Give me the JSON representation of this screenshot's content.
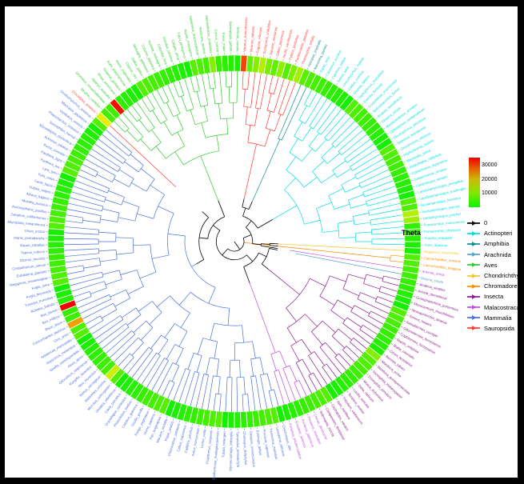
{
  "chart_data": {
    "type": "circular-phylogenetic-tree-with-heatmap-ring",
    "theta_label": "Theta",
    "colors": {
      "background": "#000000",
      "plot_background": "#ffffff",
      "ring_low": "#00f000",
      "ring_high": "#ff0000"
    },
    "scale": {
      "ticks": [
        "30000",
        "20000",
        "10000"
      ],
      "max": 35000
    },
    "legend": {
      "zero_label": "0",
      "zero_color": "#000000"
    },
    "classes": [
      {
        "label": "Actinopteri",
        "color": "#00dede"
      },
      {
        "label": "Amphibia",
        "color": "#0d8f8f"
      },
      {
        "label": "Arachnida",
        "color": "#56a0d3"
      },
      {
        "label": "Aves",
        "color": "#2fcb2f"
      },
      {
        "label": "Chondrichthyes",
        "color": "#f5c531"
      },
      {
        "label": "Chromadorea",
        "color": "#ff8c00"
      },
      {
        "label": "Insecta",
        "color": "#8b1a8b"
      },
      {
        "label": "Malacostraca",
        "color": "#be4be3"
      },
      {
        "label": "Mammalia",
        "color": "#4a6fdc"
      },
      {
        "label": "Sauropsida",
        "color": "#ff3b30"
      }
    ],
    "leaves": [
      [
        "Varanus_komodoensis",
        "Sauropsida",
        28000
      ],
      [
        "Varanus_salvator",
        "Sauropsida",
        7000
      ],
      [
        "Pogona_vitticeps",
        "Sauropsida",
        9000
      ],
      [
        "Sceloporus_undulatus",
        "Sauropsida",
        12000
      ],
      [
        "Salvator_merianae",
        "Sauropsida",
        8000
      ],
      [
        "Gekko_japonicus",
        "Sauropsida",
        6500
      ],
      [
        "Anolis_carolinensis",
        "Sauropsida",
        10000
      ],
      [
        "Python_bivittatus",
        "Sauropsida",
        5500
      ],
      [
        "Pantherophis_guttatus",
        "Sauropsida",
        8500
      ],
      [
        "Thamnophis_sirtalis",
        "Sauropsida",
        11000
      ],
      [
        "Xenopus_tropicalis",
        "Amphibia"
      ],
      [
        "Nanorana_parkeri",
        "Amphibia"
      ],
      [
        "Danio_rerio",
        "Actinopteri"
      ],
      [
        "Carassius_auratus",
        "Actinopteri"
      ],
      [
        "Cyprinus_carpio",
        "Actinopteri"
      ],
      [
        "Salmo_salar",
        "Actinopteri"
      ],
      [
        "Oncorhynchus_mykiss",
        "Actinopteri"
      ],
      [
        "Gadus_morhua",
        "Actinopteri"
      ],
      [
        "Oryzias_latipes",
        "Actinopteri"
      ],
      [
        "Xiphophorus_maculatus",
        "Actinopteri"
      ],
      [
        "Poecilia_formosa",
        "Actinopteri"
      ],
      [
        "Kryptolebias_marmoratus",
        "Actinopteri"
      ],
      [
        "Nothobranchius_furzeri",
        "Actinopteri"
      ],
      [
        "Anabas_testudineus",
        "Actinopteri"
      ],
      [
        "Channa_striata",
        "Actinopteri"
      ],
      [
        "Mastacembelus_armatus",
        "Actinopteri"
      ],
      [
        "Ophisternon_aenigmaticum",
        "Actinopteri"
      ],
      [
        "Electrophorus_electricus",
        "Actinopteri"
      ],
      [
        "Salminus_brasiliensis",
        "Actinopteri"
      ],
      [
        "Oreochromis_niloticus",
        "Actinopteri"
      ],
      [
        "Haplochromis_burtoni",
        "Actinopteri"
      ],
      [
        "Maylandia_zebra",
        "Actinopteri"
      ],
      [
        "Astatotilapia_calliptera",
        "Actinopteri"
      ],
      [
        "Cyprichromis_leptosoma",
        "Actinopteri"
      ],
      [
        "Julidochromis_ornatus",
        "Actinopteri"
      ],
      [
        "Lamprologus_lemairii",
        "Actinopteri"
      ],
      [
        "Lepidiolamprologus_elongatus",
        "Actinopteri"
      ],
      [
        "Lepidiolamprologus_boulengeri",
        "Actinopteri"
      ],
      [
        "Neolamprologus_fasciatus",
        "Actinopteri"
      ],
      [
        "Neolamprologus_savoryi",
        "Actinopteri",
        12000
      ],
      [
        "Neolamprologus_pulcher",
        "Actinopteri",
        11000
      ],
      [
        "Pomacentrus_moluccensis",
        "Actinopteri"
      ],
      [
        "Pomacentrus_chrysurus",
        "Actinopteri"
      ],
      [
        "Poecilia_reticulata",
        "Actinopteri"
      ],
      [
        "Huso_dauricus",
        "Actinopteri"
      ],
      [
        "Negaprion_brevirostris",
        "Chondrichthyes"
      ],
      [
        "Caenorhabditis_remanei",
        "Chromadorea"
      ],
      [
        "Caenorhabditis_briggsae",
        "Chromadorea"
      ],
      [
        "Artemia_sinica",
        "Malacostraca"
      ],
      [
        "Dictyna_striata",
        "Arachnida"
      ],
      [
        "Anabrus_simplex",
        "Insecta"
      ],
      [
        "Acheta_domesticus",
        "Insecta"
      ],
      [
        "Gromphadorhina_portentosa",
        "Insecta"
      ],
      [
        "Microcentrum_rhombifolium",
        "Insecta"
      ],
      [
        "Neocapritermes_taracua",
        "Insecta"
      ],
      [
        "Termes_hospes",
        "Insecta"
      ],
      [
        "Nasutitermes_corniger",
        "Insecta"
      ],
      [
        "Odontotermes_formosanus",
        "Insecta"
      ],
      [
        "Coptotermes_formosanus",
        "Insecta"
      ],
      [
        "Mantis_religiosa",
        "Insecta"
      ],
      [
        "Blatta_orientalis",
        "Insecta"
      ],
      [
        "Cimex_lectularius",
        "Insecta"
      ],
      [
        "Bemisia_tabaci",
        "Insecta"
      ],
      [
        "Manduca_sexta",
        "Insecta",
        9000
      ],
      [
        "Manduca_quinquemaculata",
        "Insecta"
      ],
      [
        "Drosophila_melanogaster",
        "Insecta"
      ],
      [
        "Drosophila_simulans",
        "Insecta"
      ],
      [
        "Musca_domestica",
        "Insecta"
      ],
      [
        "Delia_radicum",
        "Insecta"
      ],
      [
        "Lucilia_sericata",
        "Insecta"
      ],
      [
        "Tenebrio_molitor",
        "Insecta"
      ],
      [
        "Tribolium_castaneum",
        "Insecta"
      ],
      [
        "Apis_mellifera",
        "Insecta"
      ],
      [
        "Cephalotes_varians",
        "Insecta"
      ],
      [
        "Camponotus_floridanus",
        "Insecta"
      ],
      [
        "Solenopsis_invicta",
        "Insecta"
      ],
      [
        "Cherax_destructor",
        "Malacostraca"
      ],
      [
        "Penaeus_monodon",
        "Malacostraca"
      ],
      [
        "Penaeus_japonicus",
        "Malacostraca"
      ],
      [
        "Eriocheir_sinensis",
        "Malacostraca"
      ],
      [
        "Portunus_trituberculatus",
        "Malacostraca"
      ],
      [
        "Orycteropus_afer",
        "Mammalia"
      ],
      [
        "Loxodonta_africana",
        "Mammalia"
      ],
      [
        "Trichechus_manatus",
        "Mammalia"
      ],
      [
        "Procavia_capensis",
        "Mammalia"
      ],
      [
        "Echinops_telfairi",
        "Mammalia"
      ],
      [
        "Dasypus_novemcinctus",
        "Mammalia"
      ],
      [
        "Choloepus_didactylus",
        "Mammalia"
      ],
      [
        "Tamandua_tetradactyla",
        "Mammalia"
      ],
      [
        "Myrmecophaga_tridactyla",
        "Mammalia"
      ],
      [
        "Tupaia_belangeri",
        "Mammalia"
      ],
      [
        "Daubentonia_madagascariensis",
        "Mammalia"
      ],
      [
        "Propithecus_coquereli",
        "Mammalia"
      ],
      [
        "Lemur_catta",
        "Mammalia"
      ],
      [
        "Aotus_nancymaae",
        "Mammalia"
      ],
      [
        "Callithrix_jacchus",
        "Mammalia"
      ],
      [
        "Cebus_capucinus",
        "Mammalia"
      ],
      [
        "Chlorocebus_sabaeus",
        "Mammalia"
      ],
      [
        "Papio_anubis",
        "Mammalia"
      ],
      [
        "Macaca_mulatta",
        "Mammalia"
      ],
      [
        "Pan_troglodytes",
        "Mammalia"
      ],
      [
        "Homo_sapiens",
        "Mammalia"
      ],
      [
        "Pongo_pygmaeus",
        "Mammalia"
      ],
      [
        "Gorilla_gorilla",
        "Mammalia"
      ],
      [
        "Colobus_guereza",
        "Mammalia"
      ],
      [
        "Piliocolobus_badius",
        "Mammalia"
      ],
      [
        "Oryctolagus_cuniculus",
        "Mammalia"
      ],
      [
        "Cavia_porcellus",
        "Mammalia"
      ],
      [
        "Ondatra_zibethicus",
        "Mammalia"
      ],
      [
        "Microtus_ochrogaster",
        "Mammalia"
      ],
      [
        "Mastomys_coucha",
        "Mammalia",
        14000
      ],
      [
        "Rattus_norvegicus",
        "Mammalia"
      ],
      [
        "Mus_musculus",
        "Mammalia"
      ],
      [
        "Rangifer_tarandus",
        "Mammalia"
      ],
      [
        "Odocoileus_virginianus",
        "Mammalia"
      ],
      [
        "Alces_alces",
        "Mammalia"
      ],
      [
        "Giraffa_camelopardalis",
        "Mammalia"
      ],
      [
        "Aepyceros_melampus",
        "Mammalia"
      ],
      [
        "Antidorcas_marsupialis",
        "Mammalia"
      ],
      [
        "Ovis_aries",
        "Mammalia"
      ],
      [
        "Connochaetes_taurinus",
        "Mammalia",
        22000
      ],
      [
        "Bison_bison",
        "Mammalia"
      ],
      [
        "Bos_indicus",
        "Mammalia"
      ],
      [
        "Bos_taurus",
        "Mammalia",
        36000
      ],
      [
        "Bubalus_bubalis",
        "Mammalia"
      ],
      [
        "Tursiops_truncatus",
        "Mammalia"
      ],
      [
        "Kogia_breviceps",
        "Mammalia"
      ],
      [
        "Kogia_sima",
        "Mammalia"
      ],
      [
        "Megaptera_novaeangliae",
        "Mammalia"
      ],
      [
        "Eubalaena_glacialis",
        "Mammalia"
      ],
      [
        "Ceratotherium_simum",
        "Mammalia"
      ],
      [
        "Diceros_bicornis",
        "Mammalia"
      ],
      [
        "Tapirus_indicus",
        "Mammalia"
      ],
      [
        "Equus_caballus",
        "Mammalia"
      ],
      [
        "Manis_pentadactyla",
        "Mammalia"
      ],
      [
        "Ursus_arctos",
        "Mammalia"
      ],
      [
        "Ailuropoda_melanoleuca",
        "Mammalia"
      ],
      [
        "Zalophus_californianus",
        "Mammalia"
      ],
      [
        "Arctocephalus_pusillus",
        "Mammalia"
      ],
      [
        "Mustela_putorius",
        "Mammalia"
      ],
      [
        "Ailurus_fulgens",
        "Mammalia"
      ],
      [
        "Vulpes_vulpes",
        "Mammalia"
      ],
      [
        "Canis_lupus",
        "Mammalia"
      ],
      [
        "Felis_catus",
        "Mammalia"
      ],
      [
        "Lynx_lynx",
        "Mammalia"
      ],
      [
        "Panthera_leo",
        "Mammalia"
      ],
      [
        "Panthera_tigris",
        "Mammalia"
      ],
      [
        "Puma_concolor",
        "Mammalia"
      ],
      [
        "Acinonyx_jubatus",
        "Mammalia"
      ],
      [
        "Monodelphis_domestica",
        "Mammalia"
      ],
      [
        "Sarcophilus_harrisii",
        "Mammalia"
      ],
      [
        "Phascolarctos_cinereus",
        "Mammalia"
      ],
      [
        "Vombatus_ursinus",
        "Mammalia"
      ],
      [
        "Macropus_giganteus",
        "Mammalia"
      ],
      [
        "Ornithorhynchus_anatinus",
        "Mammalia"
      ],
      [
        "Crocodylus_porosus",
        "Sauropsida",
        16000
      ],
      [
        "Struthio_camelus",
        "Aves"
      ],
      [
        "Dromaius_novaehollandiae",
        "Aves"
      ],
      [
        "Apteryx_australis",
        "Aves",
        32000
      ],
      [
        "Rhea_americana",
        "Aves"
      ],
      [
        "Tinamus_guttatus",
        "Aves"
      ],
      [
        "Anas_platyrhynchos",
        "Aves"
      ],
      [
        "Anser_cygnoides",
        "Aves"
      ],
      [
        "Cygnus_olor",
        "Aves"
      ],
      [
        "Gallus_gallus",
        "Aves"
      ],
      [
        "Meleagris_gallopavo",
        "Aves"
      ],
      [
        "Coturnix_japonica",
        "Aves"
      ],
      [
        "Numida_meleagris",
        "Aves"
      ],
      [
        "Columba_livia",
        "Aves"
      ],
      [
        "Cuculus_canorus",
        "Aves"
      ],
      [
        "Calypte_anna",
        "Aves"
      ],
      [
        "Falco_peregrinus",
        "Aves"
      ],
      [
        "Aquila_chrysaetos",
        "Aves"
      ],
      [
        "Haliaeetus_leucocephalus",
        "Aves"
      ],
      [
        "Amazona_aestiva",
        "Aves"
      ],
      [
        "Melopsittacus_undulatus",
        "Aves",
        9000
      ],
      [
        "Corvus_corone",
        "Aves"
      ],
      [
        "Parus_major",
        "Aves"
      ],
      [
        "Taeniopygia_guttata",
        "Aves"
      ],
      [
        "Serinus_canaria",
        "Aves"
      ]
    ]
  }
}
